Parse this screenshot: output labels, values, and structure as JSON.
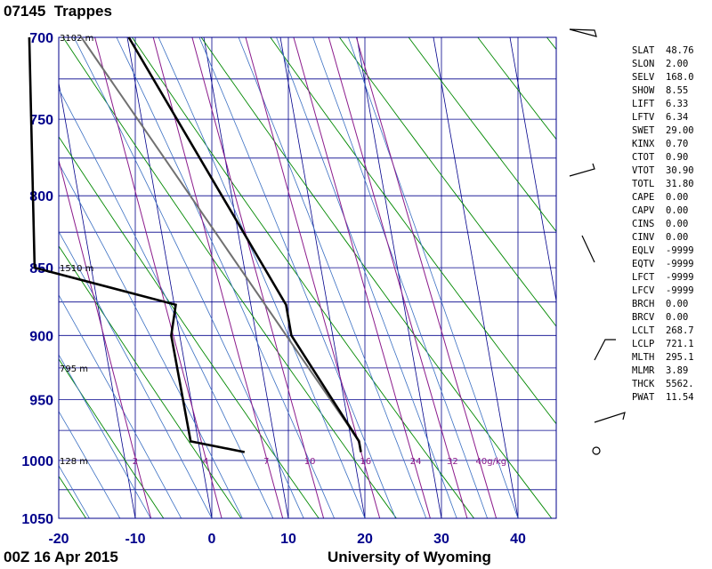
{
  "header": {
    "station": "07145  Trappes"
  },
  "footer": {
    "time": "00Z 16 Apr 2015",
    "source": "University of Wyoming"
  },
  "chart_data": {
    "type": "skew-t",
    "y_axis": {
      "pressure_ticks": [
        "700",
        "750",
        "800",
        "850",
        "900",
        "950",
        "1000",
        "1050"
      ],
      "range": [
        700,
        1050
      ],
      "scale": "log"
    },
    "x_axis": {
      "temperature_ticks": [
        "-20",
        "-10",
        "0",
        "10",
        "20",
        "30",
        "40"
      ],
      "range": [
        -20,
        45
      ]
    },
    "height_labels": [
      {
        "pressure": 700,
        "text": "3102 m"
      },
      {
        "pressure": 850,
        "text": "1510 m"
      },
      {
        "pressure": 925,
        "text": "795 m"
      },
      {
        "pressure": 1000,
        "text": "128 m"
      }
    ],
    "mixing_ratio_labels": [
      "2",
      "4",
      "7",
      "10",
      "16",
      "24",
      "32",
      "40g/kg"
    ],
    "temperature_profile": [
      {
        "p": 993,
        "t": 21.0
      },
      {
        "p": 984,
        "t": 21.0
      },
      {
        "p": 900,
        "t": 14.6
      },
      {
        "p": 877,
        "t": 14.6
      },
      {
        "p": 850,
        "t": 12.6
      },
      {
        "p": 700,
        "t": 0.2
      }
    ],
    "dewpoint_profile": [
      {
        "p": 993,
        "t": 5.8
      },
      {
        "p": 984,
        "t": -1.0
      },
      {
        "p": 900,
        "t": -1.1
      },
      {
        "p": 877,
        "t": 0.2
      },
      {
        "p": 850,
        "t": -17.4
      },
      {
        "p": 700,
        "t": -12.8
      }
    ],
    "parcel_profile": [
      {
        "p": 984,
        "t": 21.0
      },
      {
        "p": 700,
        "t": -6.0
      }
    ],
    "wind_barb_pressures": [
      700,
      800,
      850,
      925,
      975,
      1000
    ]
  },
  "indices": [
    {
      "name": "SLAT",
      "value": "48.76"
    },
    {
      "name": "SLON",
      "value": "2.00"
    },
    {
      "name": "SELV",
      "value": "168.0"
    },
    {
      "name": "SHOW",
      "value": "8.55"
    },
    {
      "name": "LIFT",
      "value": "6.33"
    },
    {
      "name": "LFTV",
      "value": "6.34"
    },
    {
      "name": "SWET",
      "value": "29.00"
    },
    {
      "name": "KINX",
      "value": "0.70"
    },
    {
      "name": "CTOT",
      "value": "0.90"
    },
    {
      "name": "VTOT",
      "value": "30.90"
    },
    {
      "name": "TOTL",
      "value": "31.80"
    },
    {
      "name": "CAPE",
      "value": "0.00"
    },
    {
      "name": "CAPV",
      "value": "0.00"
    },
    {
      "name": "CINS",
      "value": "0.00"
    },
    {
      "name": "CINV",
      "value": "0.00"
    },
    {
      "name": "EQLV",
      "value": "-9999"
    },
    {
      "name": "EQTV",
      "value": "-9999"
    },
    {
      "name": "LFCT",
      "value": "-9999"
    },
    {
      "name": "LFCV",
      "value": "-9999"
    },
    {
      "name": "BRCH",
      "value": "0.00"
    },
    {
      "name": "BRCV",
      "value": "0.00"
    },
    {
      "name": "LCLT",
      "value": "268.7"
    },
    {
      "name": "LCLP",
      "value": "721.1"
    },
    {
      "name": "MLTH",
      "value": "295.1"
    },
    {
      "name": "MLMR",
      "value": "3.89"
    },
    {
      "name": "THCK",
      "value": "5562."
    },
    {
      "name": "PWAT",
      "value": "11.54"
    }
  ],
  "colors": {
    "isobar": "#00008b",
    "isotherm": "#00008b",
    "dry_adiabat": "#008800",
    "moist_adiabat": "#3a6fc2",
    "mixing_ratio": "#8b1a8b",
    "profile": "#000000",
    "parcel": "#707070",
    "axis_labels": "#00008b"
  }
}
